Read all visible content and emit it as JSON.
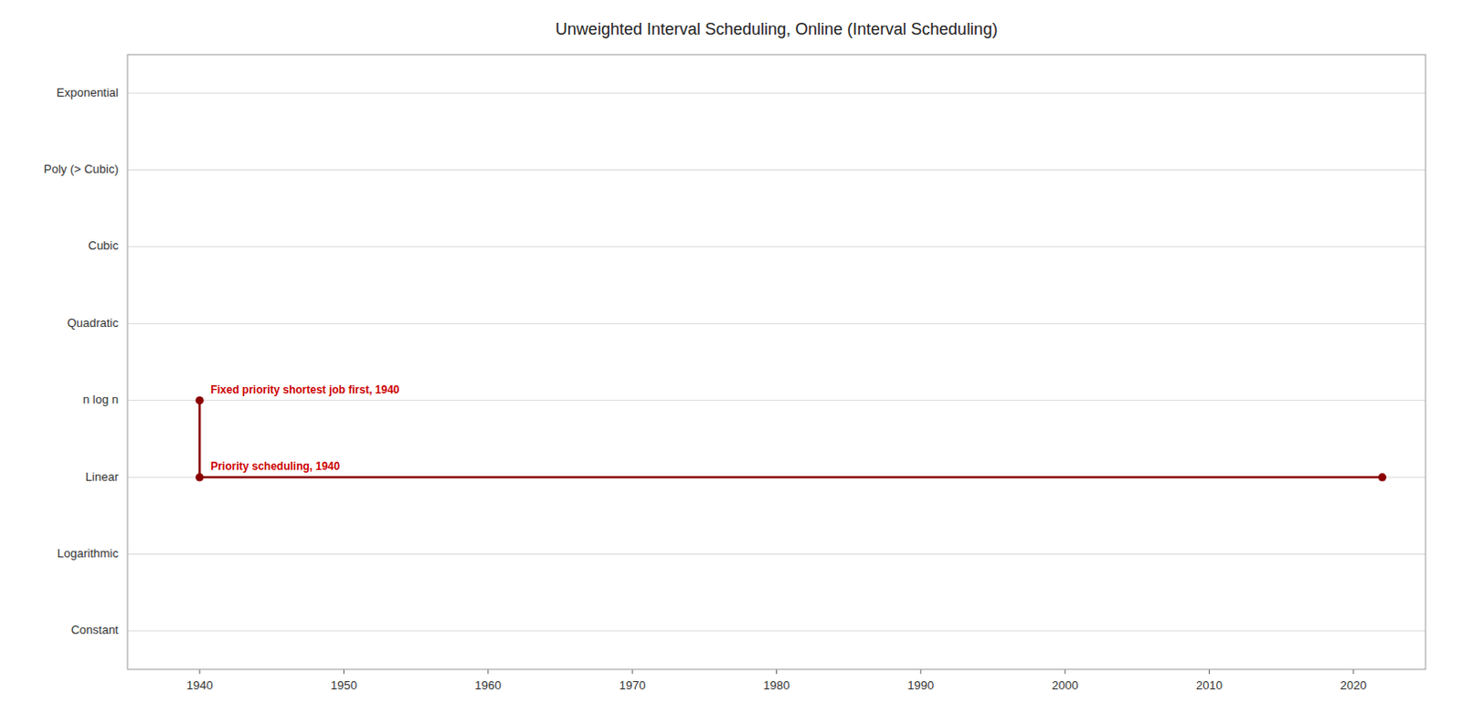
{
  "chart_data": {
    "type": "line",
    "title": "Unweighted Interval Scheduling, Online (Interval Scheduling)",
    "xlim": [
      1935,
      2025
    ],
    "xticks": [
      1940,
      1950,
      1960,
      1970,
      1980,
      1990,
      2000,
      2010,
      2020
    ],
    "ylim": [
      -0.5,
      7.5
    ],
    "yticks": [
      {
        "value": 7,
        "label": "Exponential"
      },
      {
        "value": 6,
        "label": "Poly (> Cubic)"
      },
      {
        "value": 5,
        "label": "Cubic"
      },
      {
        "value": 4,
        "label": "Quadratic"
      },
      {
        "value": 3,
        "label": "n log n"
      },
      {
        "value": 2,
        "label": "Linear"
      },
      {
        "value": 1,
        "label": "Logarithmic"
      },
      {
        "value": 0,
        "label": "Constant"
      }
    ],
    "grid": "y",
    "series": [
      {
        "x": [
          1940,
          1940,
          2022
        ],
        "values": [
          3,
          2,
          2
        ],
        "color": "#8b0000",
        "marker": "circle",
        "line_style": "solid"
      }
    ],
    "annotations": [
      {
        "text": "Fixed priority shortest job first, 1940",
        "x": 1940,
        "y": 3,
        "color": "#cc0000"
      },
      {
        "text": "Priority scheduling, 1940",
        "x": 1940,
        "y": 2,
        "color": "#cc0000"
      }
    ]
  }
}
